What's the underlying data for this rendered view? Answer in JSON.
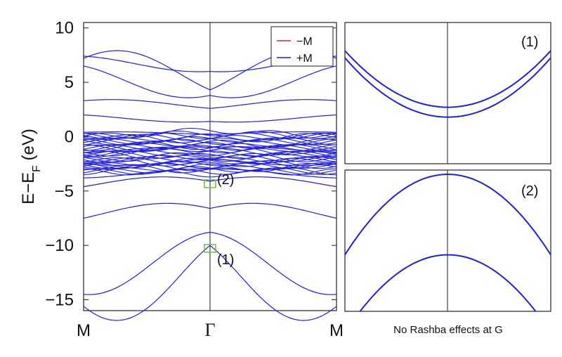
{
  "colors": {
    "minus_m": "#cc2a2a",
    "plus_m": "#1f1fe6",
    "box": "#66bb33"
  },
  "chart_data": [
    {
      "type": "line",
      "panel": "main",
      "ylabel_main": "E−E",
      "ylabel_sub": "F",
      "ylabel_unit": " (eV)",
      "ylim": [
        -16,
        10.5
      ],
      "yticks": [
        10,
        5,
        0,
        -5,
        -10,
        -15
      ],
      "ytick_labels": [
        "10",
        "5",
        "0",
        "−5",
        "−10",
        "−15"
      ],
      "xticks": [
        "M",
        "Γ",
        "M"
      ],
      "legend": {
        "placement": "top-right",
        "entries": [
          "−M",
          "+M"
        ]
      },
      "markers": [
        {
          "label": "(2)",
          "x": 0,
          "y": -4.1
        },
        {
          "label": "(1)",
          "x": 0,
          "y": -10.0
        }
      ],
      "bands_at_gamma": [
        6.0,
        4.3,
        3.8,
        2.6,
        1.4,
        0.2,
        -1.0,
        -2.0,
        -3.0,
        -4.1,
        -6.6,
        -8.8,
        -10.0
      ],
      "bands_at_m": [
        7.4,
        7.2,
        6.5,
        3.3,
        2.0,
        0.4,
        -1.5,
        -2.5,
        -3.8,
        -4.6,
        -7.5,
        -14.5,
        -15.6
      ]
    },
    {
      "type": "line",
      "panel": "zoom",
      "label": "(1)",
      "curves": [
        {
          "name": "upper",
          "x": [
            -1,
            -0.5,
            0,
            0.5,
            1
          ],
          "y": [
            0.75,
            0.43,
            0.33,
            0.43,
            0.75
          ]
        },
        {
          "name": "lower",
          "x": [
            -1,
            -0.5,
            0,
            0.5,
            1
          ],
          "y": [
            0.8,
            0.5,
            0.4,
            0.5,
            0.8
          ]
        }
      ]
    },
    {
      "type": "line",
      "panel": "zoom",
      "label": "(2)",
      "curves": [
        {
          "name": "outer-a",
          "x": [
            -1,
            0,
            1
          ],
          "y": [
            0.4,
            0.97,
            0.4
          ]
        },
        {
          "name": "inner-a",
          "x": [
            -1,
            0,
            1
          ],
          "y": [
            -0.15,
            0.4,
            -0.15
          ]
        }
      ]
    }
  ],
  "caption": "No Rashba effects at G"
}
